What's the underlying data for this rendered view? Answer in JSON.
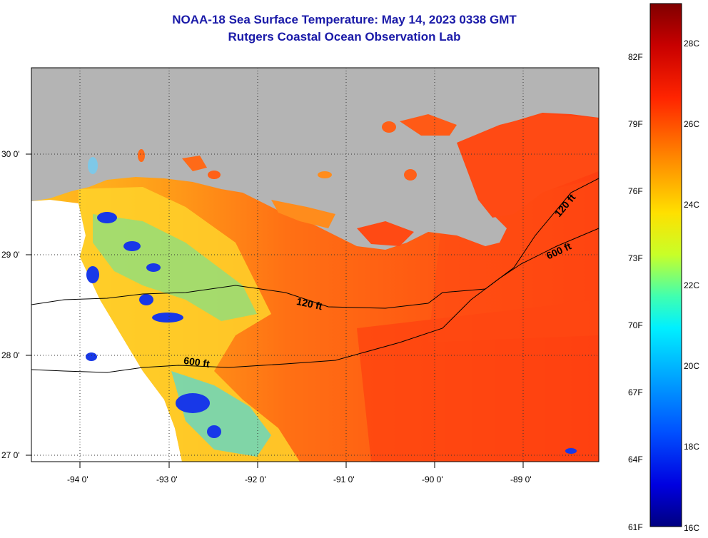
{
  "title": "NOAA-18 Sea Surface Temperature:  May 14, 2023 0338 GMT",
  "subtitle": "Rutgers Coastal Ocean Observation Lab",
  "lat_labels": [
    "30 0'",
    "29 0'",
    "28 0'",
    "27 0'"
  ],
  "lon_labels": [
    "-94 0'",
    "-93 0'",
    "-92 0'",
    "-91 0'",
    "-90 0'",
    "-89 0'"
  ],
  "contours": {
    "c120_west": "120 ft",
    "c120_east": "120 ft",
    "c600_west": "600 ft",
    "c600_east": "600 ft"
  },
  "colorbar": {
    "fahrenheit": [
      "82F",
      "79F",
      "76F",
      "73F",
      "70F",
      "67F",
      "64F",
      "61F"
    ],
    "celsius": [
      "28C",
      "26C",
      "24C",
      "22C",
      "20C",
      "18C",
      "16C"
    ],
    "colors": [
      "#8b0000",
      "#d40000",
      "#ff3000",
      "#ff8c00",
      "#ffd200",
      "#ffff00",
      "#a0ff40",
      "#00ffe0",
      "#00c8ff",
      "#0080ff",
      "#0030ff",
      "#0000d0",
      "#00008b"
    ]
  },
  "colors": {
    "land": "#b4b4b4",
    "no_data": "#ffffff",
    "title": "#1a1aa8",
    "warm_sea": "#ff4a10",
    "shelf_sea": "#ff8a1c",
    "cold_patch": "#1030e0"
  }
}
